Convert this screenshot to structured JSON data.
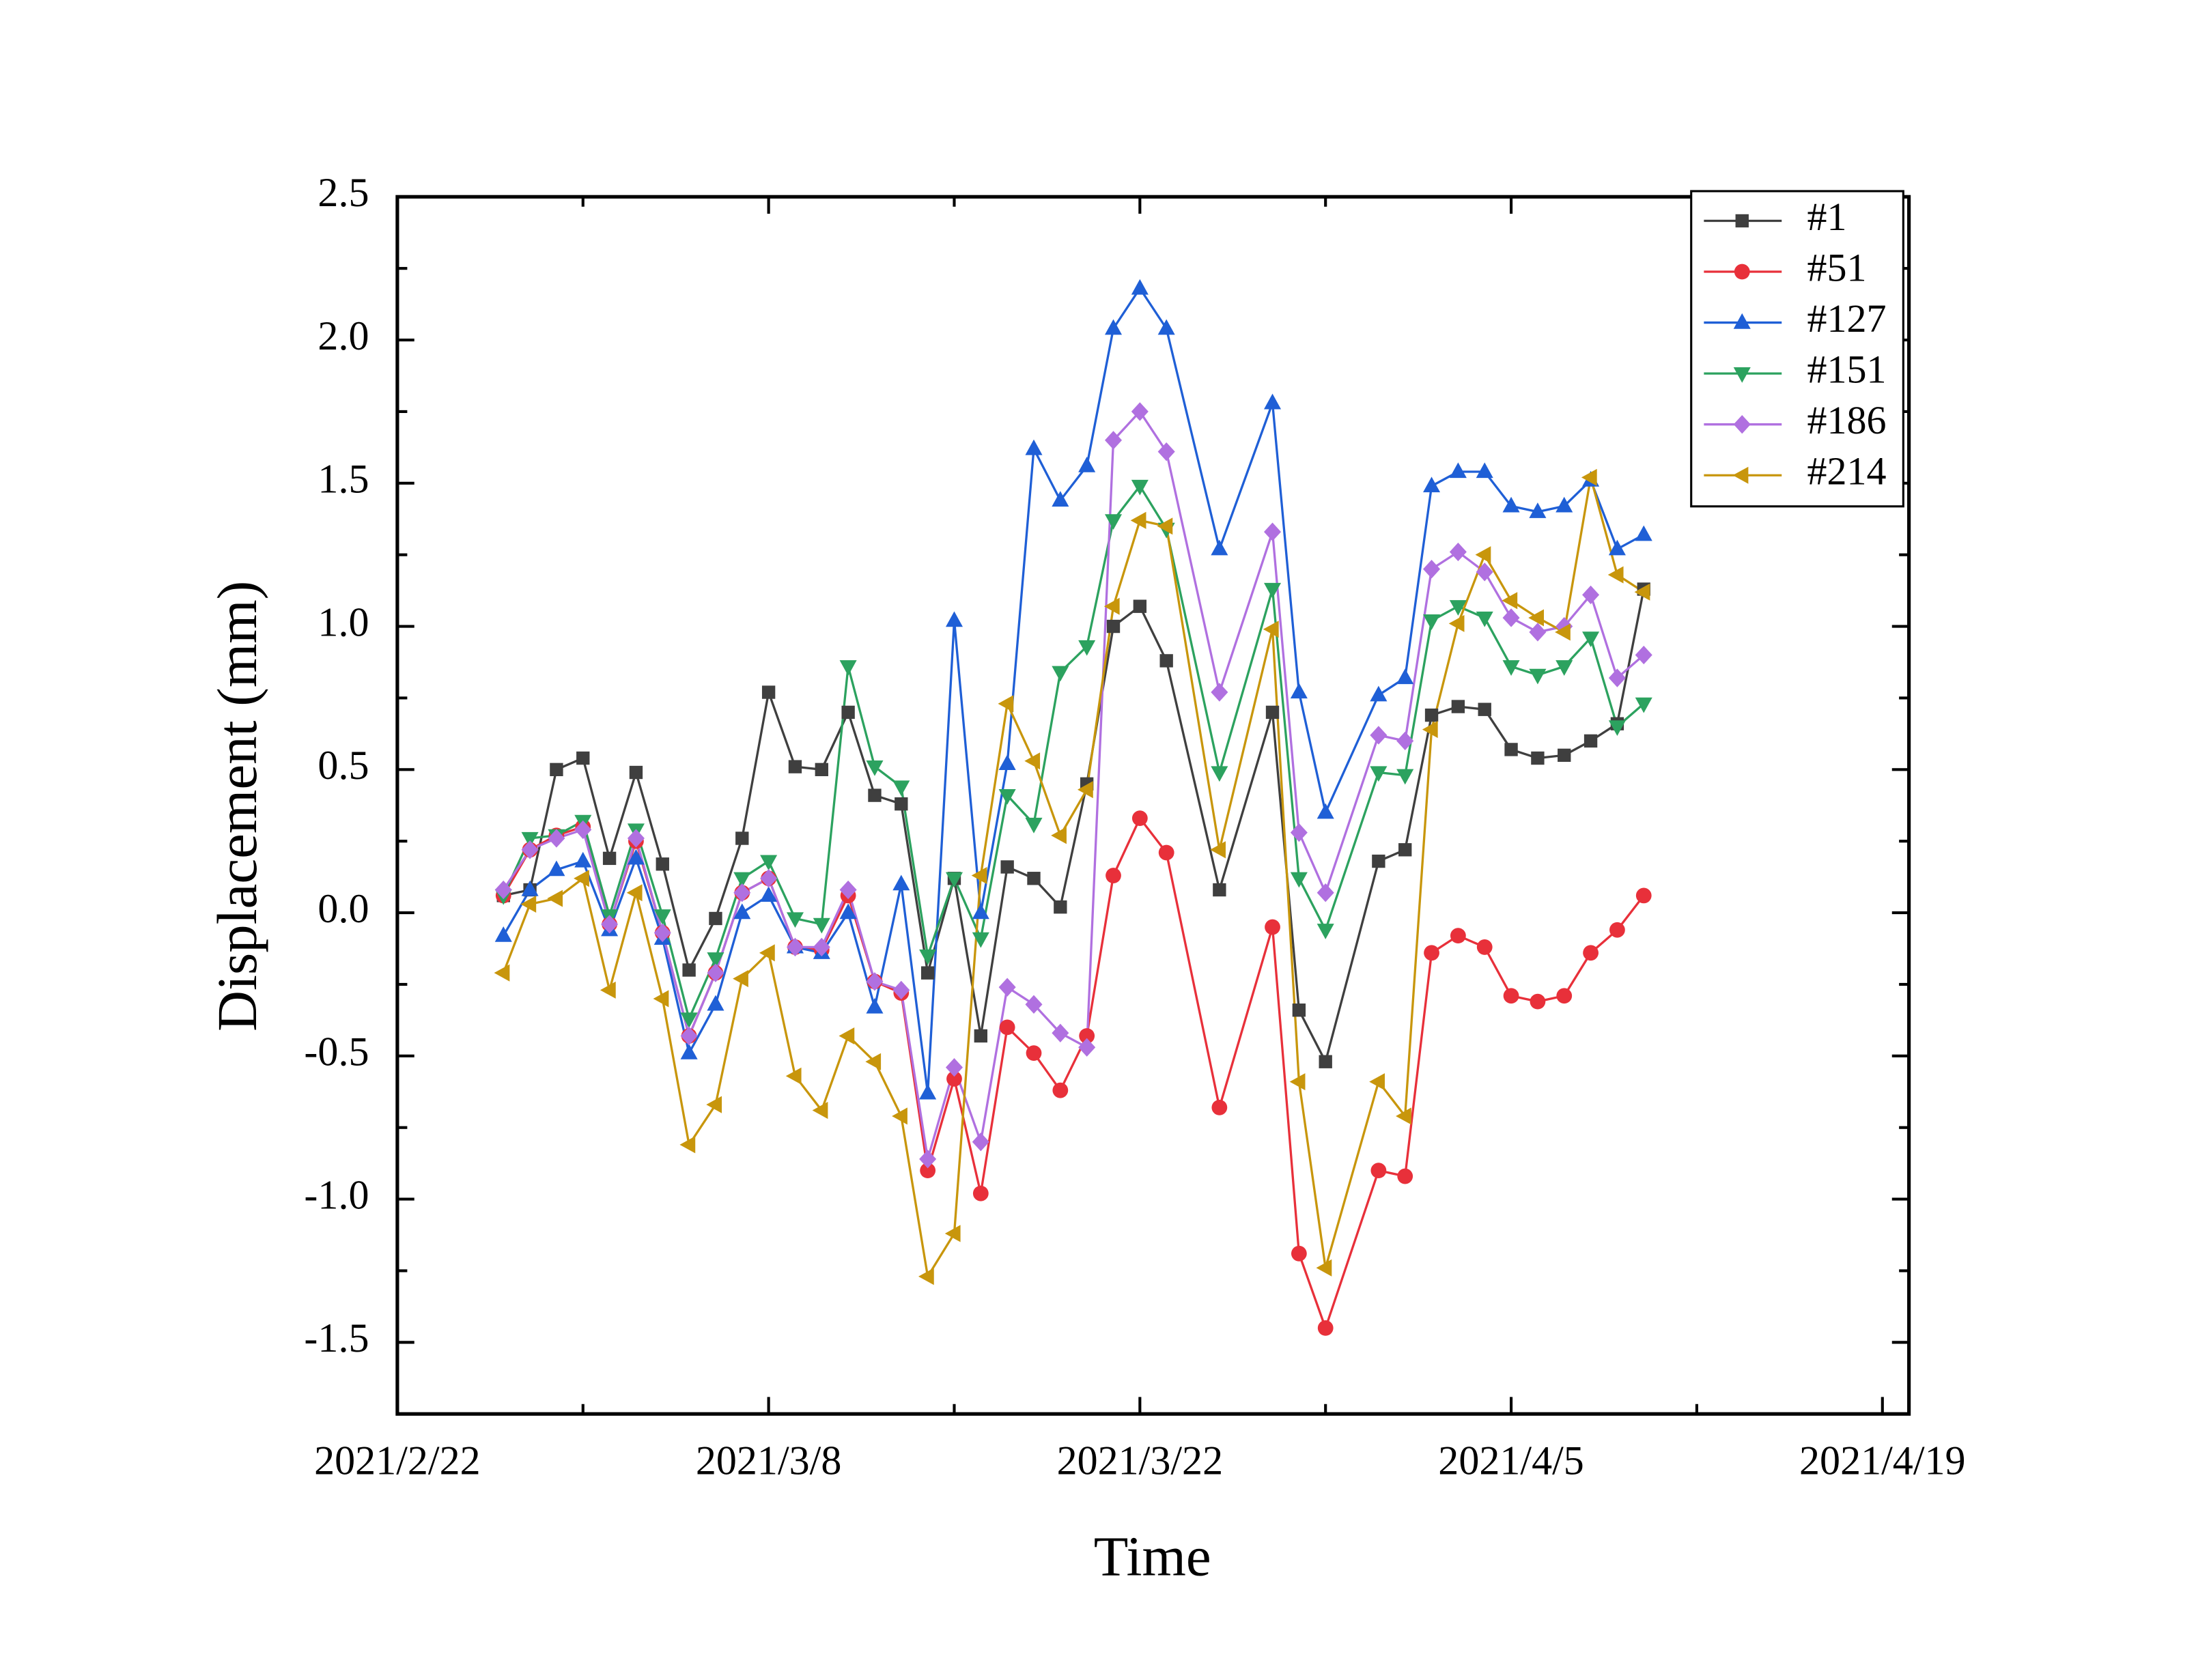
{
  "chart_data": {
    "type": "line",
    "xlabel": "Time",
    "ylabel": "Displacement (mm)",
    "x": [
      "2021/2/26",
      "2021/2/27",
      "2021/2/28",
      "2021/3/1",
      "2021/3/2",
      "2021/3/3",
      "2021/3/4",
      "2021/3/5",
      "2021/3/6",
      "2021/3/7",
      "2021/3/8",
      "2021/3/9",
      "2021/3/10",
      "2021/3/11",
      "2021/3/12",
      "2021/3/13",
      "2021/3/14",
      "2021/3/15",
      "2021/3/16",
      "2021/3/17",
      "2021/3/18",
      "2021/3/19",
      "2021/3/20",
      "2021/3/21",
      "2021/3/22",
      "2021/3/23",
      "2021/3/25",
      "2021/3/27",
      "2021/3/28",
      "2021/3/29",
      "2021/3/31",
      "2021/4/1",
      "2021/4/2",
      "2021/4/3",
      "2021/4/4",
      "2021/4/5",
      "2021/4/6",
      "2021/4/7",
      "2021/4/8",
      "2021/4/9",
      "2021/4/10"
    ],
    "xlim": [
      "2021/2/22",
      "2021/4/20"
    ],
    "xticks": [
      "2021/2/22",
      "2021/3/8",
      "2021/3/22",
      "2021/4/5",
      "2021/4/19"
    ],
    "ylim": [
      -1.75,
      2.5
    ],
    "yticks": [
      2.5,
      {
        "value": 2,
        "label": "2.0"
      },
      1.5,
      {
        "value": 1,
        "label": "1.0"
      },
      0.5,
      {
        "value": 0,
        "label": "0.0"
      },
      -0.5,
      {
        "value": -1,
        "label": "-1.0"
      },
      -1.5
    ],
    "legend": "upper right",
    "series": [
      {
        "name": "#1",
        "color": "#3f3f3f",
        "marker": "square",
        "values": [
          0.06,
          0.08,
          0.5,
          0.54,
          0.19,
          0.49,
          0.17,
          -0.2,
          -0.02,
          0.26,
          0.77,
          0.51,
          0.5,
          0.7,
          0.41,
          0.38,
          -0.21,
          0.12,
          -0.43,
          0.16,
          0.12,
          0.02,
          0.45,
          1.0,
          1.07,
          0.88,
          0.08,
          0.7,
          -0.34,
          -0.52,
          0.18,
          0.22,
          0.69,
          0.72,
          0.71,
          0.57,
          0.54,
          0.55,
          0.6,
          0.66,
          1.13
        ]
      },
      {
        "name": "#51",
        "color": "#e8303a",
        "marker": "circle",
        "values": [
          0.06,
          0.22,
          0.27,
          0.3,
          -0.04,
          0.25,
          -0.07,
          -0.43,
          -0.21,
          0.07,
          0.12,
          -0.12,
          -0.13,
          0.06,
          -0.24,
          -0.28,
          -0.9,
          -0.58,
          -0.98,
          -0.4,
          -0.49,
          -0.62,
          -0.43,
          0.13,
          0.33,
          0.21,
          -0.68,
          -0.05,
          -1.19,
          -1.45,
          -0.9,
          -0.92,
          -0.14,
          -0.08,
          -0.12,
          -0.29,
          -0.31,
          -0.29,
          -0.14,
          -0.06,
          0.06
        ]
      },
      {
        "name": "#127",
        "color": "#1f5fd6",
        "marker": "triangle-up",
        "values": [
          -0.08,
          0.08,
          0.15,
          0.18,
          -0.06,
          0.19,
          -0.09,
          -0.49,
          -0.32,
          0.0,
          0.06,
          -0.12,
          -0.14,
          0.0,
          -0.33,
          0.1,
          -0.63,
          1.02,
          0.0,
          0.52,
          1.62,
          1.44,
          1.56,
          2.04,
          2.18,
          2.04,
          1.27,
          1.78,
          0.77,
          0.35,
          0.76,
          0.82,
          1.49,
          1.54,
          1.54,
          1.42,
          1.4,
          1.42,
          1.51,
          1.27,
          1.32
        ]
      },
      {
        "name": "#151",
        "color": "#2ca25f",
        "marker": "triangle-down",
        "values": [
          0.06,
          0.26,
          0.27,
          0.32,
          -0.01,
          0.29,
          -0.01,
          -0.37,
          -0.16,
          0.12,
          0.18,
          -0.02,
          -0.04,
          0.86,
          0.51,
          0.44,
          -0.15,
          0.12,
          -0.09,
          0.41,
          0.31,
          0.84,
          0.93,
          1.37,
          1.49,
          1.34,
          0.49,
          1.13,
          0.12,
          -0.06,
          0.49,
          0.48,
          1.02,
          1.07,
          1.03,
          0.86,
          0.83,
          0.86,
          0.96,
          0.65,
          0.73
        ]
      },
      {
        "name": "#186",
        "color": "#b070e0",
        "marker": "diamond",
        "values": [
          0.08,
          0.22,
          0.26,
          0.29,
          -0.04,
          0.26,
          -0.07,
          -0.43,
          -0.21,
          0.07,
          0.12,
          -0.12,
          -0.12,
          0.08,
          -0.24,
          -0.27,
          -0.86,
          -0.54,
          -0.8,
          -0.26,
          -0.32,
          -0.42,
          -0.47,
          1.65,
          1.75,
          1.61,
          0.77,
          1.33,
          0.28,
          0.07,
          0.62,
          0.6,
          1.2,
          1.26,
          1.19,
          1.03,
          0.98,
          1.0,
          1.11,
          0.82,
          0.9
        ]
      },
      {
        "name": "#214",
        "color": "#c8960c",
        "marker": "triangle-left",
        "values": [
          -0.21,
          0.03,
          0.05,
          0.12,
          -0.27,
          0.07,
          -0.3,
          -0.81,
          -0.67,
          -0.23,
          -0.14,
          -0.57,
          -0.69,
          -0.43,
          -0.52,
          -0.71,
          -1.27,
          -1.12,
          0.13,
          0.73,
          0.53,
          0.27,
          0.43,
          1.07,
          1.37,
          1.35,
          0.22,
          0.99,
          -0.59,
          -1.24,
          -0.59,
          -0.71,
          0.64,
          1.01,
          1.25,
          1.09,
          1.03,
          0.98,
          1.52,
          1.18,
          1.12
        ]
      }
    ]
  }
}
